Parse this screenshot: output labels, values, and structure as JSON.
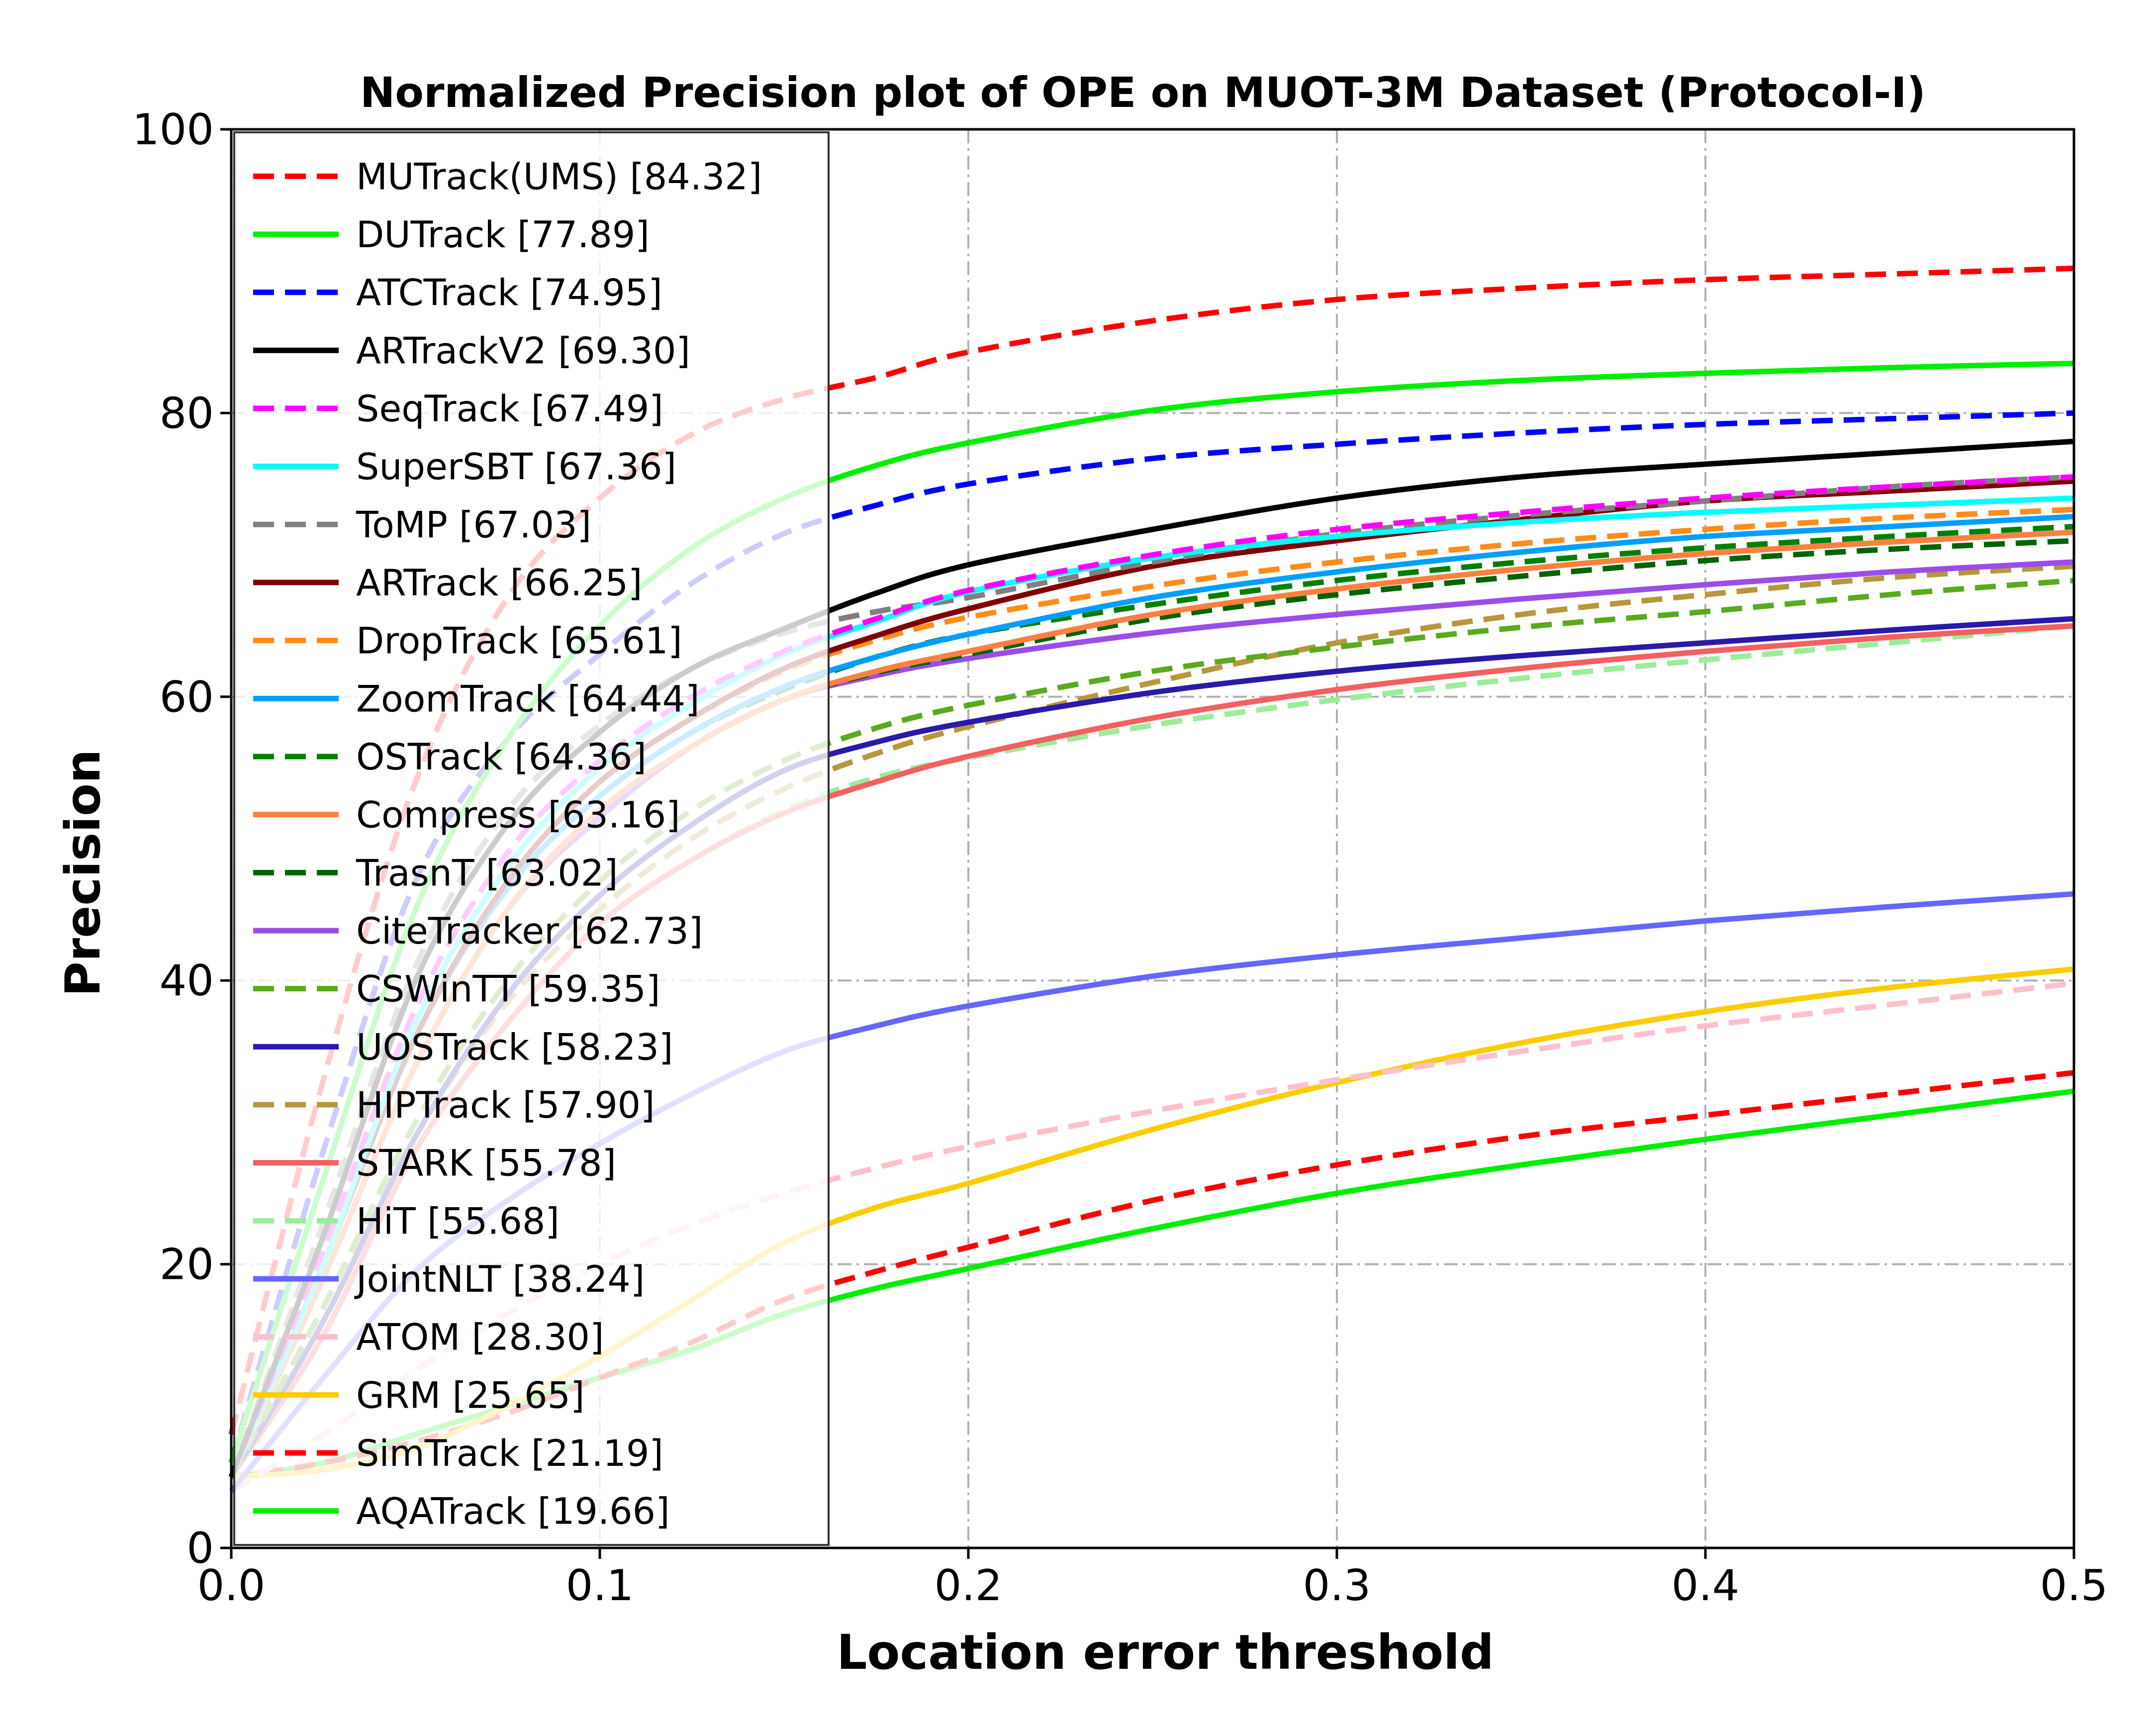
{
  "chart_data": {
    "type": "line",
    "title": "Normalized Precision plot of OPE on MUOT-3M Dataset (Protocol-I)",
    "xlabel": "Location error threshold",
    "ylabel": "Precision",
    "xlim": [
      0,
      0.5
    ],
    "ylim": [
      0,
      100
    ],
    "xticks": [
      "0.0",
      "0.1",
      "0.2",
      "0.3",
      "0.4",
      "0.5"
    ],
    "yticks": [
      "0",
      "20",
      "40",
      "60",
      "80",
      "100"
    ],
    "grid": true,
    "legend_position": "upper-left",
    "x": [
      0,
      0.025,
      0.05,
      0.075,
      0.1,
      0.125,
      0.15,
      0.175,
      0.2,
      0.25,
      0.3,
      0.35,
      0.4,
      0.45,
      0.5
    ],
    "series": [
      {
        "name": "MUTrack(UMS) [84.32]",
        "color": "#ff0000",
        "dash": "dashed",
        "values": [
          8,
          33,
          54,
          67,
          74,
          78.5,
          81,
          82.5,
          84.3,
          86.5,
          88,
          88.8,
          89.4,
          89.8,
          90.2
        ]
      },
      {
        "name": "DUTrack [77.89]",
        "color": "#00ee00",
        "dash": "solid",
        "values": [
          6,
          26,
          45,
          57,
          65,
          70.5,
          74,
          76.3,
          77.9,
          80.2,
          81.5,
          82.3,
          82.8,
          83.2,
          83.5
        ]
      },
      {
        "name": "ATCTrack [74.95]",
        "color": "#0000ff",
        "dash": "dashed",
        "values": [
          6,
          28,
          47,
          57,
          63,
          68,
          71.5,
          73.5,
          75,
          76.8,
          77.8,
          78.6,
          79.2,
          79.6,
          80
        ]
      },
      {
        "name": "ARTrackV2 [69.30]",
        "color": "#000000",
        "dash": "solid",
        "values": [
          5,
          22,
          40,
          51,
          57.5,
          62,
          64.8,
          67.3,
          69.3,
          71.8,
          74,
          75.5,
          76.4,
          77.2,
          78
        ]
      },
      {
        "name": "SeqTrack [67.49]",
        "color": "#ff00ff",
        "dash": "dashed",
        "values": [
          5,
          21,
          38,
          49,
          55.5,
          60,
          63.2,
          65.5,
          67.5,
          70,
          71.8,
          73,
          74,
          74.8,
          75.5
        ]
      },
      {
        "name": "SuperSBT [67.36]",
        "color": "#00ffff",
        "dash": "solid",
        "values": [
          5,
          20,
          37,
          48,
          55,
          59.5,
          63,
          65.3,
          67.4,
          69.8,
          71.3,
          72.3,
          73,
          73.5,
          74
        ]
      },
      {
        "name": "ToMP [67.03]",
        "color": "#808080",
        "dash": "dashed",
        "values": [
          5,
          23,
          41,
          52,
          58,
          62,
          64.5,
          66,
          67,
          69.5,
          71.5,
          72.8,
          73.8,
          74.8,
          75.5
        ]
      },
      {
        "name": "ARTrack [66.25]",
        "color": "#800000",
        "dash": "solid",
        "values": [
          5,
          20,
          36,
          47,
          54,
          58.5,
          62,
          64.3,
          66.2,
          69.2,
          71,
          72.5,
          73.8,
          74.5,
          75.2
        ]
      },
      {
        "name": "DropTrack [65.61]",
        "color": "#ff8c1a",
        "dash": "dashed",
        "values": [
          5,
          20,
          36,
          47,
          54,
          58.5,
          61.8,
          64,
          65.6,
          67.8,
          69.5,
          70.8,
          71.8,
          72.6,
          73.2
        ]
      },
      {
        "name": "ZoomTrack [64.44]",
        "color": "#009fff",
        "dash": "solid",
        "values": [
          5,
          20,
          36,
          46.5,
          53,
          57.5,
          60.7,
          62.8,
          64.4,
          67,
          68.8,
          70.2,
          71.3,
          72,
          72.7
        ]
      },
      {
        "name": "OSTrack [64.36]",
        "color": "#008000",
        "dash": "dashed",
        "values": [
          5,
          20,
          36,
          46.5,
          53,
          57.5,
          60.5,
          62.8,
          64.4,
          66.5,
          68.2,
          69.5,
          70.5,
          71.3,
          72
        ]
      },
      {
        "name": "Compress [63.16]",
        "color": "#ff7f3f",
        "dash": "solid",
        "values": [
          5,
          19,
          34,
          45,
          52,
          56.5,
          59.8,
          61.8,
          63.2,
          65.8,
          67.6,
          69,
          70.1,
          70.9,
          71.6
        ]
      },
      {
        "name": "TrasnT [63.02]",
        "color": "#006400",
        "dash": "dashed",
        "values": [
          5,
          19,
          34,
          45,
          52,
          56.5,
          59.8,
          61.7,
          63,
          65.5,
          67.2,
          68.5,
          69.6,
          70.4,
          71
        ]
      },
      {
        "name": "CiteTracker [62.73]",
        "color": "#9b4dea",
        "dash": "solid",
        "values": [
          5,
          19,
          34,
          45,
          51.5,
          56.5,
          59.8,
          61.5,
          62.7,
          64.5,
          65.8,
          66.9,
          67.9,
          68.8,
          69.5
        ]
      },
      {
        "name": "CSWinTT [59.35]",
        "color": "#5aaa1e",
        "dash": "dashed",
        "values": [
          5,
          17,
          30,
          40,
          47,
          52,
          55.5,
          57.8,
          59.4,
          61.8,
          63.5,
          64.9,
          66,
          67.2,
          68.2
        ]
      },
      {
        "name": "UOSTrack [58.23]",
        "color": "#2a1aa8",
        "dash": "solid",
        "values": [
          5,
          16,
          29,
          39,
          46,
          51,
          54.8,
          56.8,
          58.2,
          60.3,
          61.8,
          62.9,
          63.8,
          64.7,
          65.5
        ]
      },
      {
        "name": "HIPTrack [57.90]",
        "color": "#b8963c",
        "dash": "dashed",
        "values": [
          5,
          17,
          29,
          38.5,
          45,
          50,
          53.5,
          56,
          57.9,
          61,
          63.8,
          65.8,
          67.2,
          68.4,
          69.2
        ]
      },
      {
        "name": "STARK [55.78]",
        "color": "#f36060",
        "dash": "solid",
        "values": [
          5,
          15,
          28,
          37,
          44,
          48.5,
          51.8,
          54,
          55.8,
          58.5,
          60.5,
          62,
          63.2,
          64.2,
          65
        ]
      },
      {
        "name": "HiT [55.68]",
        "color": "#99ee99",
        "dash": "dashed",
        "values": [
          5,
          16,
          28,
          37,
          44,
          48.5,
          52,
          54.3,
          55.7,
          58,
          59.8,
          61.3,
          62.6,
          63.8,
          65
        ]
      },
      {
        "name": "JointNLT [38.24]",
        "color": "#6666ff",
        "dash": "solid",
        "values": [
          4,
          12,
          19.5,
          24.5,
          28.5,
          32,
          35,
          36.8,
          38.2,
          40.3,
          41.8,
          43,
          44.2,
          45.2,
          46.1
        ]
      },
      {
        "name": "ATOM [28.30]",
        "color": "#ffc0cb",
        "dash": "dashed",
        "values": [
          4,
          8,
          12.5,
          16.5,
          20,
          22.8,
          25,
          26.8,
          28.3,
          30.8,
          33,
          35,
          36.8,
          38.3,
          39.8
        ]
      },
      {
        "name": "GRM [25.65]",
        "color": "#ffcc00",
        "dash": "solid",
        "values": [
          5,
          5.5,
          7,
          10,
          13.5,
          17.5,
          21.5,
          24,
          25.7,
          29.5,
          32.8,
          35.6,
          37.8,
          39.5,
          40.8
        ]
      },
      {
        "name": "SimTrack [21.19]",
        "color": "#ff0000",
        "dash": "dashed",
        "values": [
          5,
          6,
          7.5,
          9.5,
          12,
          14.5,
          17.5,
          19.5,
          21.2,
          24.5,
          27,
          29,
          30.5,
          32,
          33.5
        ]
      },
      {
        "name": "AQATrack [19.66]",
        "color": "#00ee00",
        "dash": "solid",
        "values": [
          5,
          6,
          8,
          10,
          12,
          14,
          16.5,
          18.3,
          19.7,
          22.5,
          25,
          27,
          28.8,
          30.5,
          32.2
        ]
      }
    ]
  }
}
